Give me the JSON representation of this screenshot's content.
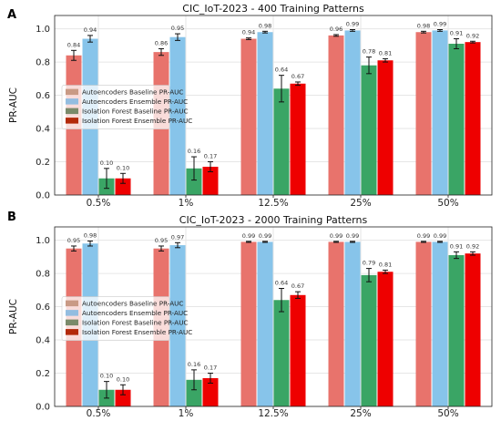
{
  "chart_data": [
    {
      "panel": "A",
      "type": "bar",
      "title": "CIC_IoT-2023 - 400 Training Patterns",
      "xlabel": "",
      "ylabel": "PR-AUC",
      "ylim": [
        0,
        1.08
      ],
      "yticks": [
        "0.0",
        "0.2",
        "0.4",
        "0.6",
        "0.8",
        "1.0"
      ],
      "categories": [
        "0.5%",
        "1%",
        "12.5%",
        "25%",
        "50%"
      ],
      "legend_position": "middle-left",
      "series": [
        {
          "name": "Autoencoders Baseline PR-AUC",
          "values": [
            0.84,
            0.86,
            0.94,
            0.96,
            0.98
          ],
          "labels": [
            "0.84",
            "0.86",
            "0.94",
            "0.96",
            "0.98"
          ],
          "errors": [
            0.03,
            0.02,
            0.005,
            0.005,
            0.005
          ]
        },
        {
          "name": "Autoencoders Ensemble PR-AUC",
          "values": [
            0.94,
            0.95,
            0.98,
            0.99,
            0.99
          ],
          "labels": [
            "0.94",
            "0.95",
            "0.98",
            "0.99",
            "0.99"
          ],
          "errors": [
            0.02,
            0.02,
            0.005,
            0.005,
            0.005
          ]
        },
        {
          "name": "Isolation Forest Baseline PR-AUC",
          "values": [
            0.1,
            0.16,
            0.64,
            0.78,
            0.91
          ],
          "labels": [
            "0.10",
            "0.16",
            "0.64",
            "0.78",
            "0.91"
          ],
          "errors": [
            0.06,
            0.07,
            0.08,
            0.05,
            0.03
          ]
        },
        {
          "name": "Isolation Forest Ensemble PR-AUC",
          "values": [
            0.1,
            0.17,
            0.67,
            0.81,
            0.92
          ],
          "labels": [
            "0.10",
            "0.17",
            "0.67",
            "0.81",
            "0.92"
          ],
          "errors": [
            0.03,
            0.03,
            0.01,
            0.01,
            0.005
          ]
        }
      ]
    },
    {
      "panel": "B",
      "type": "bar",
      "title": "CIC_IoT-2023 - 2000 Training Patterns",
      "xlabel": "",
      "ylabel": "PR-AUC",
      "ylim": [
        0,
        1.08
      ],
      "yticks": [
        "0.0",
        "0.2",
        "0.4",
        "0.6",
        "0.8",
        "1.0"
      ],
      "categories": [
        "0.5%",
        "1%",
        "12.5%",
        "25%",
        "50%"
      ],
      "legend_position": "middle-left",
      "series": [
        {
          "name": "Autoencoders Baseline PR-AUC",
          "values": [
            0.95,
            0.95,
            0.99,
            0.99,
            0.99
          ],
          "labels": [
            "0.95",
            "0.95",
            "0.99",
            "0.99",
            "0.99"
          ],
          "errors": [
            0.015,
            0.015,
            0.003,
            0.003,
            0.003
          ]
        },
        {
          "name": "Autoencoders Ensemble PR-AUC",
          "values": [
            0.98,
            0.97,
            0.99,
            0.99,
            0.99
          ],
          "labels": [
            "0.98",
            "0.97",
            "0.99",
            "0.99",
            "0.99"
          ],
          "errors": [
            0.015,
            0.015,
            0.003,
            0.003,
            0.003
          ]
        },
        {
          "name": "Isolation Forest Baseline PR-AUC",
          "values": [
            0.1,
            0.16,
            0.64,
            0.79,
            0.91
          ],
          "labels": [
            "0.10",
            "0.16",
            "0.64",
            "0.79",
            "0.91"
          ],
          "errors": [
            0.05,
            0.06,
            0.07,
            0.04,
            0.02
          ]
        },
        {
          "name": "Isolation Forest Ensemble PR-AUC",
          "values": [
            0.1,
            0.17,
            0.67,
            0.81,
            0.92
          ],
          "labels": [
            "0.10",
            "0.17",
            "0.67",
            "0.81",
            "0.92"
          ],
          "errors": [
            0.03,
            0.03,
            0.02,
            0.01,
            0.01
          ]
        }
      ]
    }
  ],
  "colors": {
    "series": [
      "#e8736c",
      "#87c4ea",
      "#3aa565",
      "#ee0000"
    ],
    "legend_patches": [
      "#c99a85",
      "#93bde0",
      "#7a8a6a",
      "#b32a0a"
    ],
    "label_text": [
      "#333333",
      "#333333",
      "#333333",
      "#333333"
    ],
    "grid": "#e6e6e6",
    "axis": "#222222",
    "errorbar": "#111111"
  }
}
